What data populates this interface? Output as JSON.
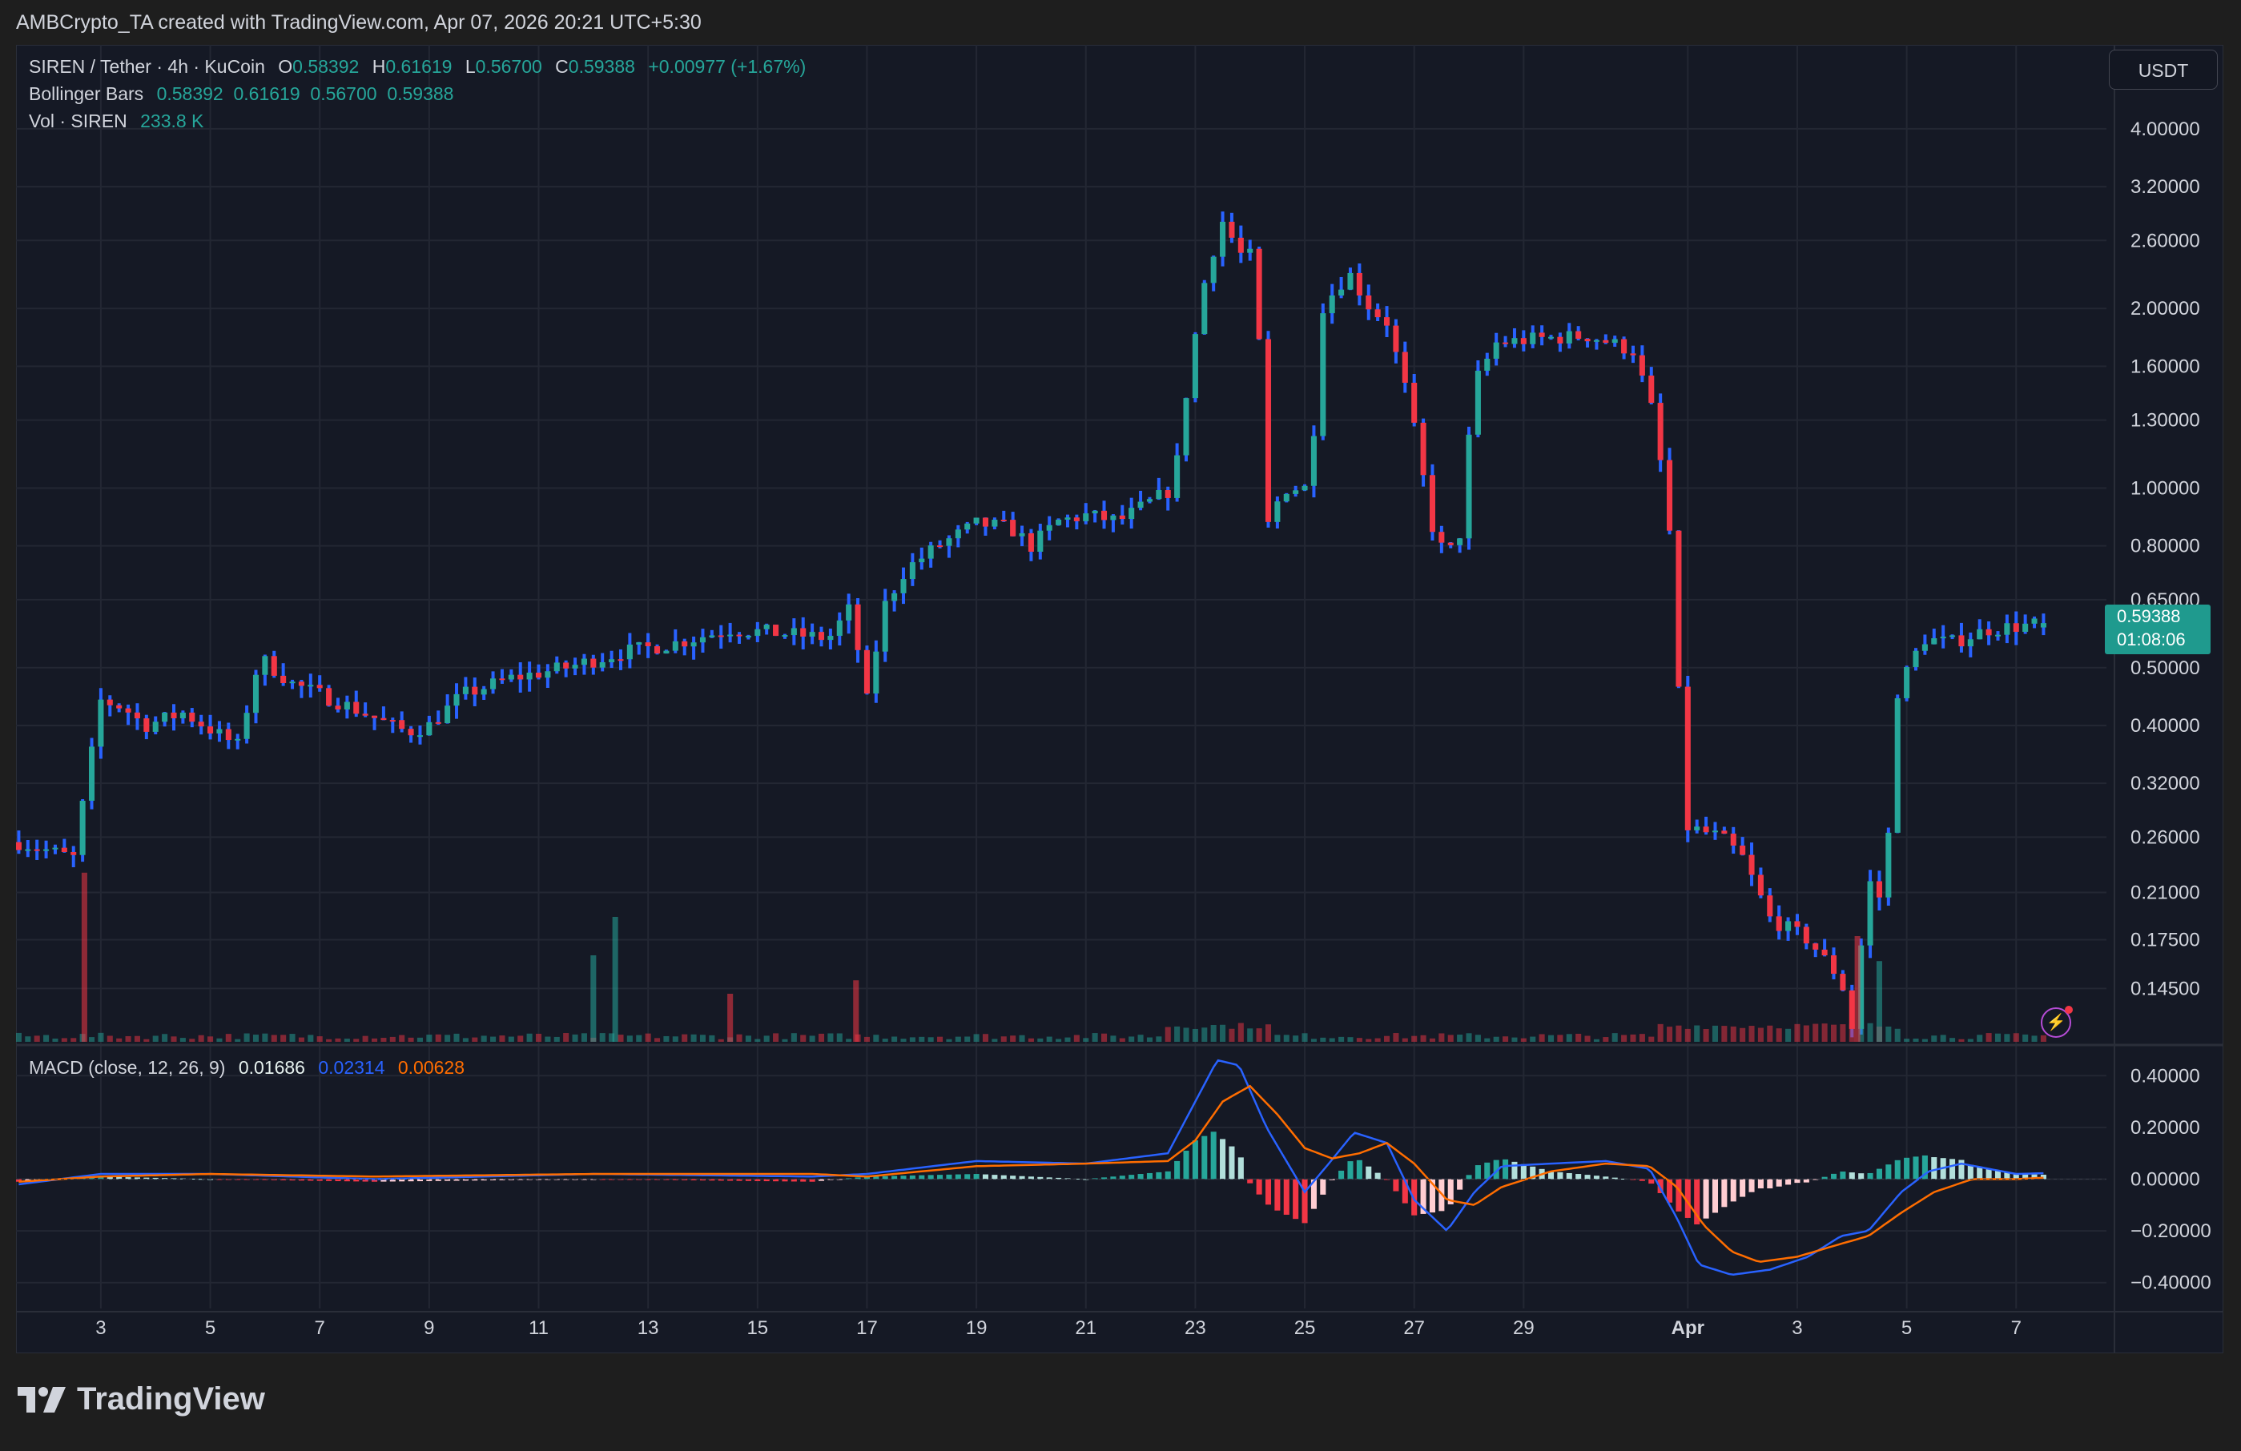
{
  "header": {
    "credit": "AMBCrypto_TA created with TradingView.com, Apr 07, 2026 20:21 UTC+5:30"
  },
  "legend": {
    "symbol": "SIREN / Tether · 4h · KuCoin",
    "o_label": "O",
    "o_value": "0.58392",
    "h_label": "H",
    "h_value": "0.61619",
    "l_label": "L",
    "l_value": "0.56700",
    "c_label": "C",
    "c_value": "0.59388",
    "change": "+0.00977 (+1.67%)",
    "bb_label": "Bollinger Bars",
    "bb_values": "0.58392  0.61619  0.56700  0.59388",
    "vol_label": "Vol · SIREN",
    "vol_value": "233.8 K",
    "macd_label": "MACD (close, 12, 26, 9)",
    "macd_hist": "0.01686",
    "macd_line": "0.02314",
    "macd_signal": "0.00628"
  },
  "currency_button": "USDT",
  "price_tag": {
    "price": "0.59388",
    "countdown": "01:08:06"
  },
  "logo_text": "TradingView",
  "colors": {
    "up": "#26a69a",
    "down": "#f23645",
    "bar_body": "#2962ff",
    "macd": "#2962ff",
    "signal": "#ff6d00",
    "background": "#151925"
  },
  "chart_data": [
    {
      "type": "candlestick",
      "title": "SIREN / Tether · 4h · KuCoin",
      "scale": "log",
      "ylim": [
        0.118,
        5.2
      ],
      "y_ticks": [
        "4.00000",
        "3.20000",
        "2.60000",
        "2.00000",
        "1.60000",
        "1.30000",
        "1.00000",
        "0.80000",
        "0.65000",
        "0.50000",
        "0.40000",
        "0.32000",
        "0.26000",
        "0.21000",
        "0.17500",
        "0.14500"
      ],
      "x_ticks": [
        "3",
        "5",
        "7",
        "9",
        "11",
        "13",
        "15",
        "17",
        "19",
        "21",
        "23",
        "25",
        "27",
        "29",
        "Apr",
        "3",
        "5",
        "7"
      ],
      "x_tick_days": [
        3,
        5,
        7,
        9,
        11,
        13,
        15,
        17,
        19,
        21,
        23,
        25,
        27,
        29,
        32,
        34,
        36,
        38
      ],
      "x_range_days": [
        1.45,
        39.65
      ],
      "waypoints": [
        [
          1.5,
          0.255
        ],
        [
          2.5,
          0.24
        ],
        [
          3.0,
          0.44
        ],
        [
          3.4,
          0.43
        ],
        [
          3.8,
          0.4
        ],
        [
          4.5,
          0.42
        ],
        [
          5.5,
          0.37
        ],
        [
          5.9,
          0.52
        ],
        [
          6.5,
          0.47
        ],
        [
          7.3,
          0.44
        ],
        [
          7.8,
          0.42
        ],
        [
          8.3,
          0.4
        ],
        [
          8.6,
          0.39
        ],
        [
          9.0,
          0.4
        ],
        [
          9.6,
          0.45
        ],
        [
          10.5,
          0.48
        ],
        [
          11.5,
          0.5
        ],
        [
          12.5,
          0.53
        ],
        [
          13.5,
          0.55
        ],
        [
          14.5,
          0.58
        ],
        [
          15.5,
          0.57
        ],
        [
          16.3,
          0.56
        ],
        [
          16.7,
          0.63
        ],
        [
          17.0,
          0.44
        ],
        [
          17.3,
          0.63
        ],
        [
          17.7,
          0.73
        ],
        [
          18.3,
          0.8
        ],
        [
          19.0,
          0.87
        ],
        [
          19.6,
          0.86
        ],
        [
          20.0,
          0.8
        ],
        [
          20.5,
          0.88
        ],
        [
          21.0,
          0.9
        ],
        [
          21.6,
          0.88
        ],
        [
          22.2,
          0.95
        ],
        [
          22.6,
          1.0
        ],
        [
          22.9,
          1.6
        ],
        [
          23.2,
          2.3
        ],
        [
          23.5,
          2.8
        ],
        [
          23.9,
          2.4
        ],
        [
          24.1,
          2.5
        ],
        [
          24.3,
          0.85
        ],
        [
          24.6,
          1.0
        ],
        [
          25.1,
          1.0
        ],
        [
          25.3,
          2.0
        ],
        [
          25.8,
          2.3
        ],
        [
          26.2,
          2.0
        ],
        [
          26.5,
          1.9
        ],
        [
          26.9,
          1.4
        ],
        [
          27.2,
          1.0
        ],
        [
          27.4,
          0.8
        ],
        [
          27.8,
          0.78
        ],
        [
          28.1,
          1.5
        ],
        [
          28.5,
          1.75
        ],
        [
          29.3,
          1.78
        ],
        [
          30.2,
          1.8
        ],
        [
          31.0,
          1.7
        ],
        [
          31.4,
          1.3
        ],
        [
          31.7,
          0.8
        ],
        [
          31.8,
          0.5
        ],
        [
          32.0,
          0.27
        ],
        [
          32.6,
          0.26
        ],
        [
          33.0,
          0.24
        ],
        [
          33.5,
          0.19
        ],
        [
          34.2,
          0.175
        ],
        [
          34.8,
          0.15
        ],
        [
          35.0,
          0.125
        ],
        [
          35.3,
          0.22
        ],
        [
          35.6,
          0.2
        ],
        [
          35.8,
          0.45
        ],
        [
          36.3,
          0.56
        ],
        [
          36.8,
          0.55
        ],
        [
          37.5,
          0.58
        ],
        [
          38.3,
          0.59
        ],
        [
          38.55,
          0.59388
        ]
      ],
      "last": {
        "o": 0.58392,
        "h": 0.61619,
        "l": 0.567,
        "c": 0.59388
      }
    },
    {
      "type": "bar",
      "title": "Vol · SIREN",
      "last_value": "233.8 K",
      "spikes": [
        {
          "day": 2.7,
          "rel": 0.88,
          "dir": "down"
        },
        {
          "day": 12.0,
          "rel": 0.45,
          "dir": "up"
        },
        {
          "day": 12.4,
          "rel": 0.65,
          "dir": "up"
        },
        {
          "day": 14.5,
          "rel": 0.25,
          "dir": "down"
        },
        {
          "day": 16.8,
          "rel": 0.32,
          "dir": "down"
        },
        {
          "day": 35.1,
          "rel": 0.55,
          "dir": "down"
        },
        {
          "day": 35.5,
          "rel": 0.42,
          "dir": "up"
        }
      ]
    },
    {
      "type": "line",
      "title": "MACD (close, 12, 26, 9)",
      "ylim": [
        -0.5,
        0.5
      ],
      "y_ticks": [
        "0.40000",
        "0.20000",
        "0.00000",
        "−0.20000",
        "−0.40000"
      ],
      "y_tick_values": [
        0.4,
        0.2,
        0,
        -0.2,
        -0.4
      ],
      "series": [
        {
          "name": "MACD",
          "points": [
            [
              1.5,
              -0.02
            ],
            [
              3,
              0.02
            ],
            [
              5,
              0.02
            ],
            [
              8,
              0.0
            ],
            [
              12,
              0.02
            ],
            [
              16,
              0.01
            ],
            [
              17,
              0.02
            ],
            [
              19,
              0.07
            ],
            [
              21,
              0.06
            ],
            [
              22.5,
              0.1
            ],
            [
              23.0,
              0.3
            ],
            [
              23.4,
              0.46
            ],
            [
              23.8,
              0.44
            ],
            [
              24.3,
              0.2
            ],
            [
              25.0,
              -0.05
            ],
            [
              25.4,
              0.05
            ],
            [
              25.9,
              0.18
            ],
            [
              26.5,
              0.14
            ],
            [
              27.0,
              -0.08
            ],
            [
              27.6,
              -0.2
            ],
            [
              28.1,
              -0.05
            ],
            [
              28.6,
              0.05
            ],
            [
              29.5,
              0.06
            ],
            [
              30.5,
              0.07
            ],
            [
              31.3,
              0.04
            ],
            [
              31.8,
              -0.15
            ],
            [
              32.2,
              -0.33
            ],
            [
              32.8,
              -0.37
            ],
            [
              33.5,
              -0.35
            ],
            [
              34.2,
              -0.3
            ],
            [
              34.8,
              -0.22
            ],
            [
              35.3,
              -0.2
            ],
            [
              35.9,
              -0.05
            ],
            [
              36.4,
              0.03
            ],
            [
              37.0,
              0.06
            ],
            [
              38.0,
              0.02
            ],
            [
              38.55,
              0.02314
            ]
          ]
        },
        {
          "name": "Signal",
          "points": [
            [
              1.5,
              -0.01
            ],
            [
              3,
              0.01
            ],
            [
              5,
              0.02
            ],
            [
              8,
              0.01
            ],
            [
              12,
              0.02
            ],
            [
              16,
              0.02
            ],
            [
              17,
              0.01
            ],
            [
              19,
              0.05
            ],
            [
              21,
              0.06
            ],
            [
              22.5,
              0.07
            ],
            [
              23.0,
              0.15
            ],
            [
              23.5,
              0.3
            ],
            [
              24.0,
              0.36
            ],
            [
              24.5,
              0.25
            ],
            [
              25.0,
              0.12
            ],
            [
              25.5,
              0.08
            ],
            [
              26.0,
              0.1
            ],
            [
              26.5,
              0.14
            ],
            [
              27.0,
              0.06
            ],
            [
              27.6,
              -0.08
            ],
            [
              28.1,
              -0.1
            ],
            [
              28.6,
              -0.03
            ],
            [
              29.5,
              0.03
            ],
            [
              30.5,
              0.06
            ],
            [
              31.3,
              0.05
            ],
            [
              31.8,
              -0.03
            ],
            [
              32.3,
              -0.18
            ],
            [
              32.8,
              -0.28
            ],
            [
              33.3,
              -0.32
            ],
            [
              34.0,
              -0.3
            ],
            [
              34.8,
              -0.25
            ],
            [
              35.3,
              -0.22
            ],
            [
              35.9,
              -0.13
            ],
            [
              36.5,
              -0.05
            ],
            [
              37.2,
              0.0
            ],
            [
              38.0,
              0.0
            ],
            [
              38.55,
              0.00628
            ]
          ]
        }
      ],
      "histogram": "MACD minus Signal"
    }
  ]
}
